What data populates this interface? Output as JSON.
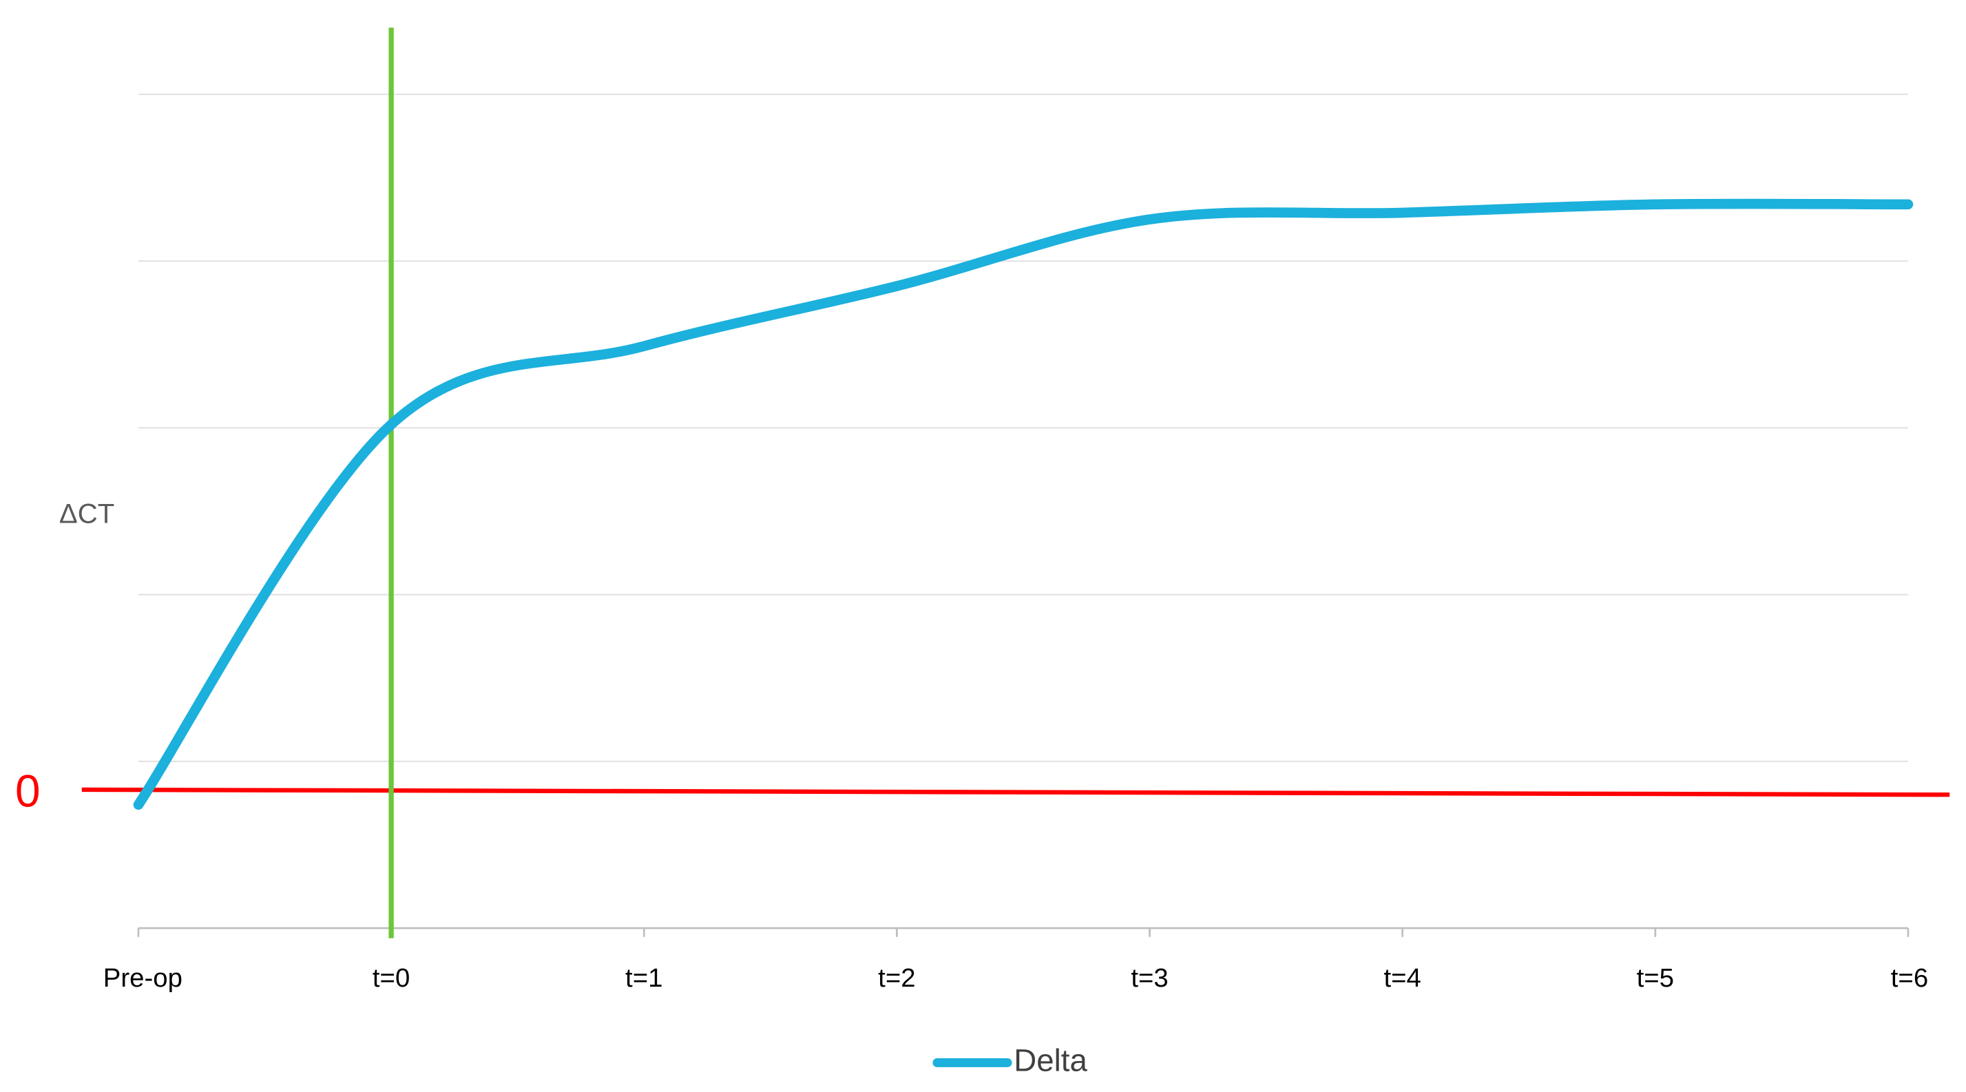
{
  "chart_data": {
    "type": "line",
    "y_axis_label": "ΔCT",
    "categories": [
      "Pre-op",
      "t=0",
      "t=1",
      "t=2",
      "t=3",
      "t=4",
      "t=5",
      "t=6"
    ],
    "series": [
      {
        "name": "Delta",
        "color": "#1cb0dc",
        "values": [
          -0.06,
          2.22,
          2.69,
          3.05,
          3.45,
          3.49,
          3.54,
          3.54
        ]
      }
    ],
    "ylim": [
      -0.8,
      4.2
    ],
    "yticks": [
      -0.8,
      0.2,
      1.2,
      2.2,
      3.2,
      4.2
    ],
    "grid": true,
    "reference_line": {
      "value": 0,
      "label": "0",
      "color": "#ff0000"
    },
    "marker_line_color": "#6cc63a",
    "legend": "bottom"
  }
}
